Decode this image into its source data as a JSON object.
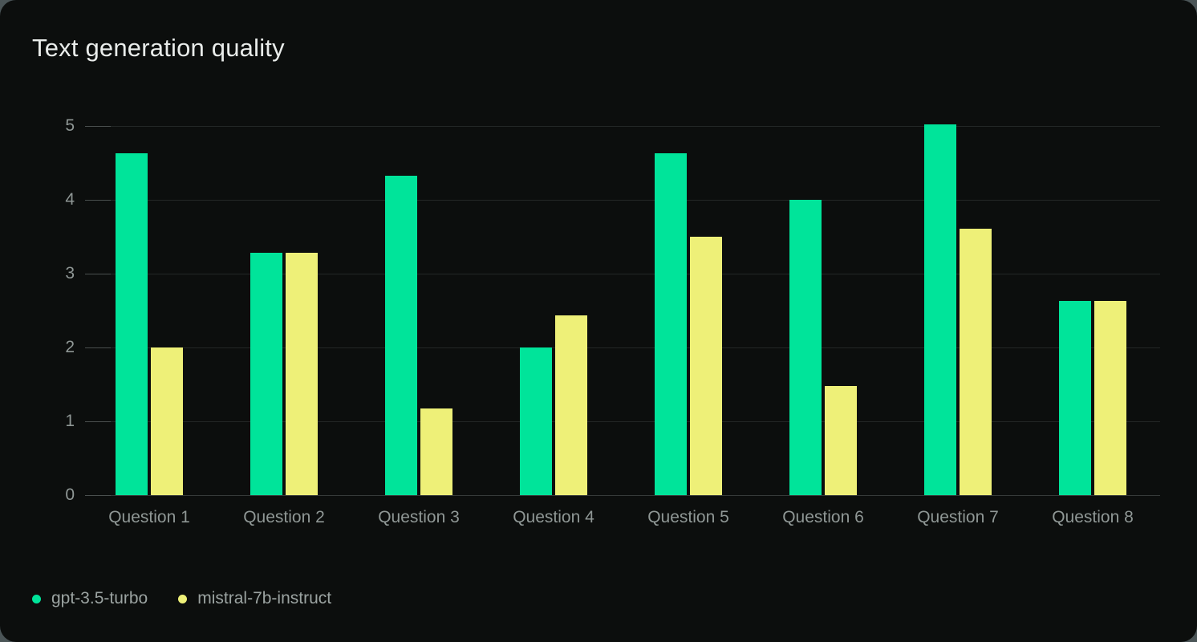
{
  "colors": {
    "page_corner": "#4b5557",
    "card_background": "#0c0e0d",
    "grid_line": "#232726",
    "baseline_line": "#363a39",
    "tick_line": "#4a4f4e",
    "axis_text": "#8f9795",
    "title_text": "#e9ecea",
    "legend_text": "#9ba3a1",
    "series_green": "#00e49a",
    "series_yellow": "#eef078"
  },
  "chart_data": {
    "type": "bar",
    "title": "Text generation quality",
    "categories": [
      "Question 1",
      "Question 2",
      "Question 3",
      "Question 4",
      "Question 5",
      "Question 6",
      "Question 7",
      "Question 8"
    ],
    "series": [
      {
        "name": "gpt-3.5-turbo",
        "color": "#00e49a",
        "values": [
          4.63,
          3.28,
          4.33,
          2.0,
          4.63,
          4.0,
          5.02,
          2.63
        ]
      },
      {
        "name": "mistral-7b-instruct",
        "color": "#eef078",
        "values": [
          2.0,
          3.28,
          1.17,
          2.43,
          3.5,
          1.48,
          3.61,
          2.63
        ]
      }
    ],
    "xlabel": "",
    "ylabel": "",
    "ylim": [
      0,
      5
    ],
    "yticks": [
      0,
      1,
      2,
      3,
      4,
      5
    ],
    "grid": true,
    "legend_position": "bottom-left"
  }
}
